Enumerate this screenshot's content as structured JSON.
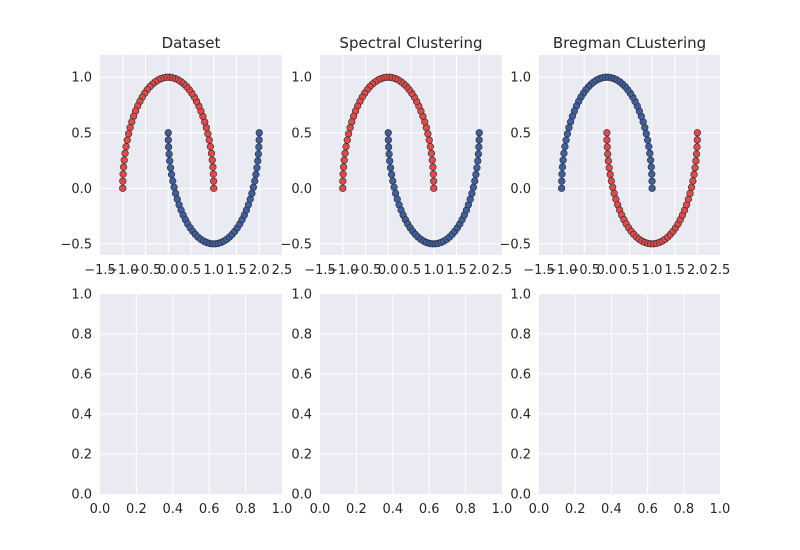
{
  "colors": {
    "red": "#e24a4a",
    "blue": "#3f5fa0",
    "axes_bg": "#eaeaf2",
    "grid": "#ffffff"
  },
  "chart_data": [
    {
      "type": "scatter",
      "title": "Dataset",
      "xlim": [
        -1.5,
        2.5
      ],
      "ylim": [
        -0.6,
        1.2
      ],
      "xticks": [
        "−1.5",
        "−1.0",
        "−0.5",
        "0.0",
        "0.5",
        "1.0",
        "1.5",
        "2.0",
        "2.5"
      ],
      "xtick_values": [
        -1.5,
        -1.0,
        -0.5,
        0.0,
        0.5,
        1.0,
        1.5,
        2.0,
        2.5
      ],
      "yticks": [
        "−0.5",
        "0.0",
        "0.5",
        "1.0"
      ],
      "ytick_values": [
        -0.5,
        0.0,
        0.5,
        1.0
      ],
      "grid": true,
      "series": [
        {
          "shape": "upper-moon",
          "x_range": [
            -1.0,
            1.0
          ],
          "count": 50,
          "color": "red"
        },
        {
          "shape": "lower-moon",
          "x_range": [
            0.0,
            2.0
          ],
          "count": 50,
          "color": "blue"
        }
      ]
    },
    {
      "type": "scatter",
      "title": "Spectral Clustering",
      "xlim": [
        -1.5,
        2.5
      ],
      "ylim": [
        -0.6,
        1.2
      ],
      "xticks": [
        "−1.5",
        "−1.0",
        "−0.5",
        "0.0",
        "0.5",
        "1.0",
        "1.5",
        "2.0",
        "2.5"
      ],
      "xtick_values": [
        -1.5,
        -1.0,
        -0.5,
        0.0,
        0.5,
        1.0,
        1.5,
        2.0,
        2.5
      ],
      "yticks": [
        "−0.5",
        "0.0",
        "0.5",
        "1.0"
      ],
      "ytick_values": [
        -0.5,
        0.0,
        0.5,
        1.0
      ],
      "grid": true,
      "series": [
        {
          "shape": "upper-moon",
          "x_range": [
            -1.0,
            1.0
          ],
          "count": 50,
          "color": "red"
        },
        {
          "shape": "lower-moon",
          "x_range": [
            0.0,
            2.0
          ],
          "count": 50,
          "color": "blue"
        }
      ]
    },
    {
      "type": "scatter",
      "title": "Bregman CLustering",
      "xlim": [
        -1.5,
        2.5
      ],
      "ylim": [
        -0.6,
        1.2
      ],
      "xticks": [
        "−1.5",
        "−1.0",
        "−0.5",
        "0.0",
        "0.5",
        "1.0",
        "1.5",
        "2.0",
        "2.5"
      ],
      "xtick_values": [
        -1.5,
        -1.0,
        -0.5,
        0.0,
        0.5,
        1.0,
        1.5,
        2.0,
        2.5
      ],
      "yticks": [
        "−0.5",
        "0.0",
        "0.5",
        "1.0"
      ],
      "ytick_values": [
        -0.5,
        0.0,
        0.5,
        1.0
      ],
      "grid": true,
      "series": [
        {
          "shape": "upper-moon",
          "x_range": [
            -1.0,
            1.0
          ],
          "count": 50,
          "color": "blue"
        },
        {
          "shape": "lower-moon",
          "x_range": [
            0.0,
            2.0
          ],
          "count": 50,
          "color": "red"
        }
      ]
    },
    {
      "type": "scatter",
      "title": "",
      "xlim": [
        0,
        1
      ],
      "ylim": [
        0,
        1
      ],
      "xticks": [
        "0.0",
        "0.2",
        "0.4",
        "0.6",
        "0.8",
        "1.0"
      ],
      "xtick_values": [
        0.0,
        0.2,
        0.4,
        0.6,
        0.8,
        1.0
      ],
      "yticks": [
        "0.0",
        "0.2",
        "0.4",
        "0.6",
        "0.8",
        "1.0"
      ],
      "ytick_values": [
        0.0,
        0.2,
        0.4,
        0.6,
        0.8,
        1.0
      ],
      "grid": true,
      "series": []
    },
    {
      "type": "scatter",
      "title": "",
      "xlim": [
        0,
        1
      ],
      "ylim": [
        0,
        1
      ],
      "xticks": [
        "0.0",
        "0.2",
        "0.4",
        "0.6",
        "0.8",
        "1.0"
      ],
      "xtick_values": [
        0.0,
        0.2,
        0.4,
        0.6,
        0.8,
        1.0
      ],
      "yticks": [
        "0.0",
        "0.2",
        "0.4",
        "0.6",
        "0.8",
        "1.0"
      ],
      "ytick_values": [
        0.0,
        0.2,
        0.4,
        0.6,
        0.8,
        1.0
      ],
      "grid": true,
      "series": []
    },
    {
      "type": "scatter",
      "title": "",
      "xlim": [
        0,
        1
      ],
      "ylim": [
        0,
        1
      ],
      "xticks": [
        "0.0",
        "0.2",
        "0.4",
        "0.6",
        "0.8",
        "1.0"
      ],
      "xtick_values": [
        0.0,
        0.2,
        0.4,
        0.6,
        0.8,
        1.0
      ],
      "yticks": [
        "0.0",
        "0.2",
        "0.4",
        "0.6",
        "0.8",
        "1.0"
      ],
      "ytick_values": [
        0.0,
        0.2,
        0.4,
        0.6,
        0.8,
        1.0
      ],
      "grid": true,
      "series": []
    }
  ]
}
